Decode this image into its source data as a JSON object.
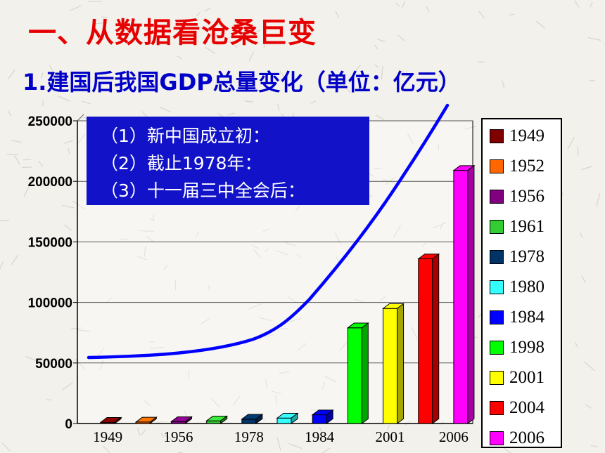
{
  "slide": {
    "title": "一、从数据看沧桑巨变",
    "subtitle": "1.建国后我国GDP总量变化（单位：亿元）",
    "notes": [
      "（1）新中国成立初：",
      "（2）截止1978年：",
      "（3）十一届三中全会后："
    ]
  },
  "chart_data": {
    "type": "bar",
    "categories": [
      "1949",
      "1952",
      "1956",
      "1961",
      "1978",
      "1980",
      "1984",
      "1998",
      "2001",
      "2004",
      "2006"
    ],
    "x_tick_labels": [
      "1949",
      "1956",
      "1978",
      "1984",
      "2001",
      "2006"
    ],
    "values": [
      1000,
      1200,
      1600,
      2200,
      3600,
      4500,
      7200,
      79000,
      95000,
      136000,
      209000
    ],
    "colors": [
      "#800000",
      "#ff6600",
      "#800080",
      "#33cc33",
      "#003366",
      "#33ffff",
      "#0000ff",
      "#00ff00",
      "#ffff00",
      "#ff0000",
      "#ff00ff"
    ],
    "y_ticks": [
      0,
      50000,
      100000,
      150000,
      200000,
      250000
    ],
    "ylim": [
      0,
      250000
    ],
    "grid": true,
    "legend": "right",
    "style": "3d",
    "trend_curve_color": "#0000ff"
  }
}
